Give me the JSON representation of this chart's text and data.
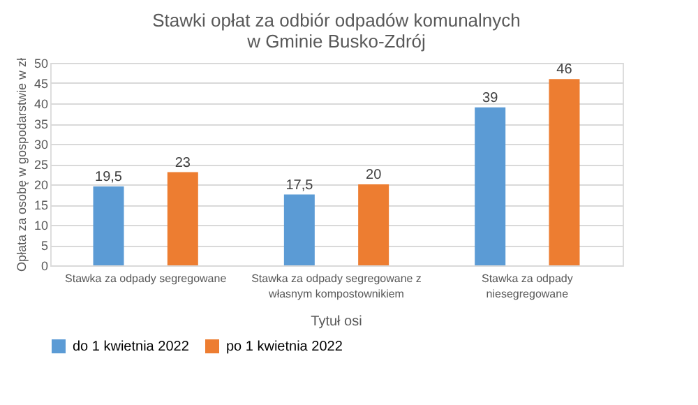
{
  "chart_data": {
    "type": "bar",
    "title": "Stawki opłat za odbiór odpadów komunalnych w Gminie Busko-Zdrój",
    "xlabel": "Tytuł osi",
    "ylabel": "Opłata za osobę w gospodarstwie w zł",
    "categories": [
      "Stawka za odpady segregowane",
      "Stawka za odpady segregowane z własnym kompostownikiem",
      "Stawka za odpady niesegregowane"
    ],
    "series": [
      {
        "name": "do 1 kwietnia 2022",
        "color": "#5b9bd5",
        "values": [
          19.5,
          17.5,
          39
        ],
        "value_labels": [
          "19,5",
          "17,5",
          "39"
        ]
      },
      {
        "name": "po 1 kwietnia 2022",
        "color": "#ed7d31",
        "values": [
          23,
          20,
          46
        ],
        "value_labels": [
          "23",
          "20",
          "46"
        ]
      }
    ],
    "ylim": [
      0,
      50
    ],
    "yticks": [
      0,
      5,
      10,
      15,
      20,
      25,
      30,
      35,
      40,
      45,
      50
    ],
    "grid": "y",
    "legend": "bottom"
  }
}
